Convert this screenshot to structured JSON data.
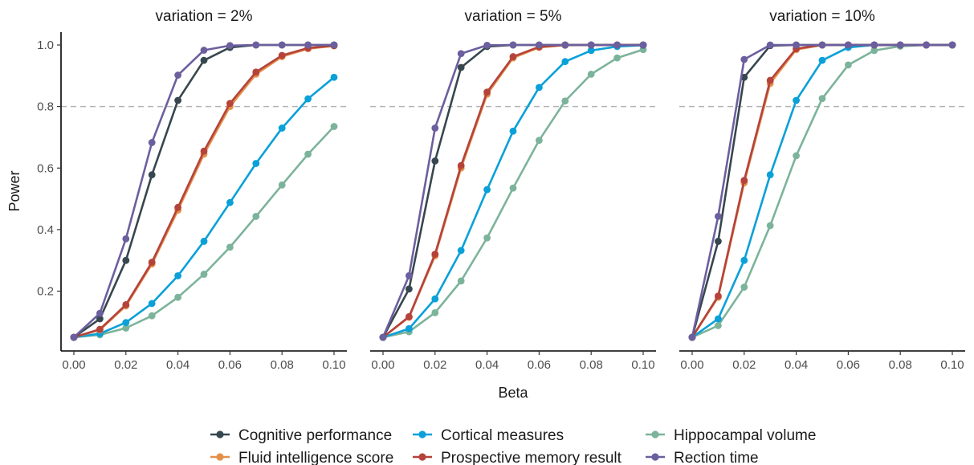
{
  "chart_data": {
    "type": "line",
    "xlabel": "Beta",
    "ylabel": "Power",
    "x": [
      0.0,
      0.01,
      0.02,
      0.03,
      0.04,
      0.05,
      0.06,
      0.07,
      0.08,
      0.09,
      0.1
    ],
    "xlim": [
      0.0,
      0.1
    ],
    "ylim": [
      0.05,
      1.0
    ],
    "x_tick_labels": [
      "0.00",
      "0.02",
      "0.04",
      "0.06",
      "0.08",
      "0.10"
    ],
    "y_tick_labels": [
      "0.2",
      "0.4",
      "0.6",
      "0.8",
      "1.0"
    ],
    "reference_line": 0.8,
    "grid": false,
    "legend_position": "bottom",
    "colors": {
      "Cognitive performance": "#37474f",
      "Fluid intelligence score": "#e3914a",
      "Cortical measures": "#0aa0d8",
      "Prospective memory result": "#b5433b",
      "Hippocampal volume": "#7cb39b",
      "Rection time": "#6c5f9e"
    },
    "legend": [
      "Cognitive performance",
      "Fluid intelligence score",
      "Cortical measures",
      "Prospective memory result",
      "Hippocampal volume",
      "Rection time"
    ],
    "panels": [
      {
        "title": "variation = 2%",
        "series": [
          {
            "name": "Hippocampal volume",
            "values": [
              0.05,
              0.058,
              0.08,
              0.12,
              0.18,
              0.255,
              0.343,
              0.443,
              0.545,
              0.645,
              0.735
            ]
          },
          {
            "name": "Cortical measures",
            "values": [
              0.05,
              0.062,
              0.098,
              0.16,
              0.25,
              0.362,
              0.488,
              0.615,
              0.73,
              0.825,
              0.895
            ]
          },
          {
            "name": "Fluid intelligence score",
            "values": [
              0.05,
              0.074,
              0.152,
              0.288,
              0.463,
              0.645,
              0.8,
              0.905,
              0.962,
              0.988,
              0.997
            ]
          },
          {
            "name": "Prospective memory result",
            "values": [
              0.05,
              0.076,
              0.156,
              0.294,
              0.472,
              0.655,
              0.81,
              0.912,
              0.966,
              0.99,
              0.998
            ]
          },
          {
            "name": "Cognitive performance",
            "values": [
              0.05,
              0.11,
              0.3,
              0.578,
              0.82,
              0.95,
              0.992,
              1.0,
              1.0,
              1.0,
              1.0
            ]
          },
          {
            "name": "Rection time",
            "values": [
              0.05,
              0.128,
              0.37,
              0.683,
              0.902,
              0.983,
              0.998,
              1.0,
              1.0,
              1.0,
              1.0
            ]
          }
        ]
      },
      {
        "title": "variation = 5%",
        "series": [
          {
            "name": "Hippocampal volume",
            "values": [
              0.05,
              0.068,
              0.13,
              0.233,
              0.373,
              0.535,
              0.69,
              0.818,
              0.905,
              0.958,
              0.985
            ]
          },
          {
            "name": "Cortical measures",
            "values": [
              0.05,
              0.078,
              0.175,
              0.332,
              0.53,
              0.72,
              0.862,
              0.946,
              0.982,
              0.995,
              0.999
            ]
          },
          {
            "name": "Fluid intelligence score",
            "values": [
              0.05,
              0.115,
              0.315,
              0.6,
              0.84,
              0.958,
              0.992,
              0.999,
              1.0,
              1.0,
              1.0
            ]
          },
          {
            "name": "Prospective memory result",
            "values": [
              0.05,
              0.117,
              0.32,
              0.608,
              0.847,
              0.962,
              0.994,
              1.0,
              1.0,
              1.0,
              1.0
            ]
          },
          {
            "name": "Cognitive performance",
            "values": [
              0.05,
              0.207,
              0.623,
              0.927,
              0.995,
              1.0,
              1.0,
              1.0,
              1.0,
              1.0,
              1.0
            ]
          },
          {
            "name": "Rection time",
            "values": [
              0.05,
              0.25,
              0.73,
              0.972,
              0.999,
              1.0,
              1.0,
              1.0,
              1.0,
              1.0,
              1.0
            ]
          }
        ]
      },
      {
        "title": "variation = 10%",
        "series": [
          {
            "name": "Hippocampal volume",
            "values": [
              0.05,
              0.088,
              0.213,
              0.413,
              0.64,
              0.826,
              0.935,
              0.982,
              0.996,
              1.0,
              1.0
            ]
          },
          {
            "name": "Cortical measures",
            "values": [
              0.05,
              0.11,
              0.3,
              0.578,
              0.82,
              0.95,
              0.992,
              1.0,
              1.0,
              1.0,
              1.0
            ]
          },
          {
            "name": "Fluid intelligence score",
            "values": [
              0.05,
              0.18,
              0.552,
              0.875,
              0.985,
              1.0,
              1.0,
              1.0,
              1.0,
              1.0,
              1.0
            ]
          },
          {
            "name": "Prospective memory result",
            "values": [
              0.05,
              0.184,
              0.56,
              0.885,
              0.988,
              1.0,
              1.0,
              1.0,
              1.0,
              1.0,
              1.0
            ]
          },
          {
            "name": "Cognitive performance",
            "values": [
              0.05,
              0.362,
              0.895,
              0.998,
              1.0,
              1.0,
              1.0,
              1.0,
              1.0,
              1.0,
              1.0
            ]
          },
          {
            "name": "Rection time",
            "values": [
              0.05,
              0.443,
              0.953,
              1.0,
              1.0,
              1.0,
              1.0,
              1.0,
              1.0,
              1.0,
              1.0
            ]
          }
        ]
      }
    ]
  }
}
